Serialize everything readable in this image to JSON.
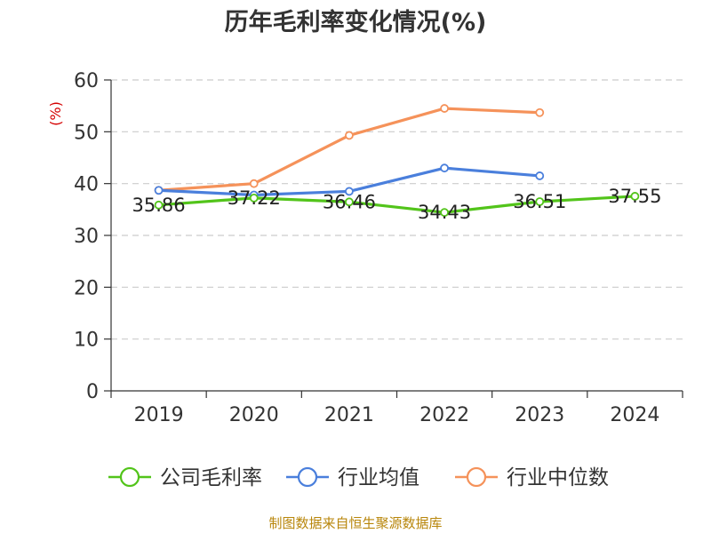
{
  "chart_data": {
    "type": "line",
    "title": "历年毛利率变化情况(%)",
    "ylabel": "(%)",
    "xlabel": "",
    "categories": [
      "2019",
      "2020",
      "2021",
      "2022",
      "2023",
      "2024"
    ],
    "ylim": [
      0,
      60
    ],
    "yticks": [
      0,
      10,
      20,
      30,
      40,
      50,
      60
    ],
    "grid": true,
    "legend_position": "bottom",
    "series": [
      {
        "name": "公司毛利率",
        "color": "#52c41a",
        "values": [
          35.86,
          37.22,
          36.46,
          34.43,
          36.51,
          37.55
        ],
        "labels": [
          "35.86",
          "37.22",
          "36.46",
          "34.43",
          "36.51",
          "37.55"
        ]
      },
      {
        "name": "行业均值",
        "color": "#4a7fdc",
        "values": [
          38.7,
          37.8,
          38.5,
          43.0,
          41.5,
          null
        ]
      },
      {
        "name": "行业中位数",
        "color": "#f5925a",
        "values": [
          38.7,
          40.0,
          49.3,
          54.5,
          53.7,
          null
        ]
      }
    ]
  },
  "footer": {
    "source": "制图数据来自恒生聚源数据库"
  }
}
